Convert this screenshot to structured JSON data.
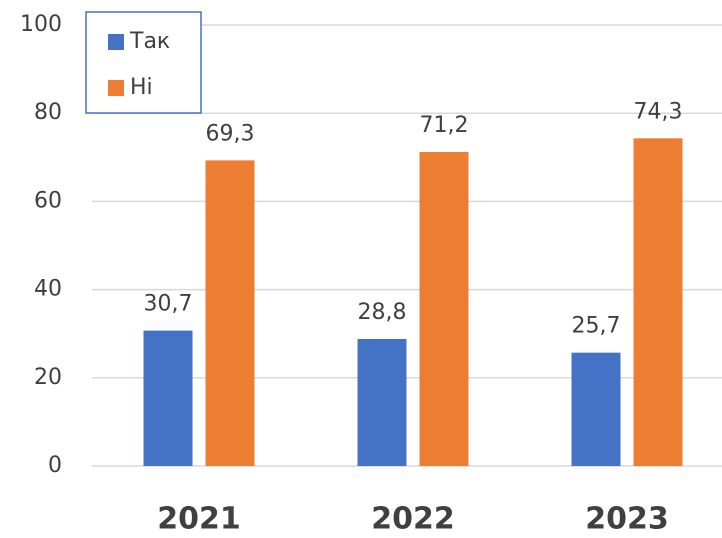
{
  "chart_data": {
    "type": "bar",
    "categories": [
      "2021",
      "2022",
      "2023"
    ],
    "series": [
      {
        "name": "Так",
        "color": "#4472c4",
        "values": [
          30.7,
          28.8,
          25.7
        ],
        "value_labels": [
          "30,7",
          "28,8",
          "25,7"
        ]
      },
      {
        "name": "Ні",
        "color": "#ed7d31",
        "values": [
          69.3,
          71.2,
          74.3
        ],
        "value_labels": [
          "69,3",
          "71,2",
          "74,3"
        ]
      }
    ],
    "ylim": [
      0,
      100
    ],
    "yticks": [
      0,
      20,
      40,
      60,
      80,
      100
    ],
    "grid": true,
    "legend": "top-left"
  }
}
